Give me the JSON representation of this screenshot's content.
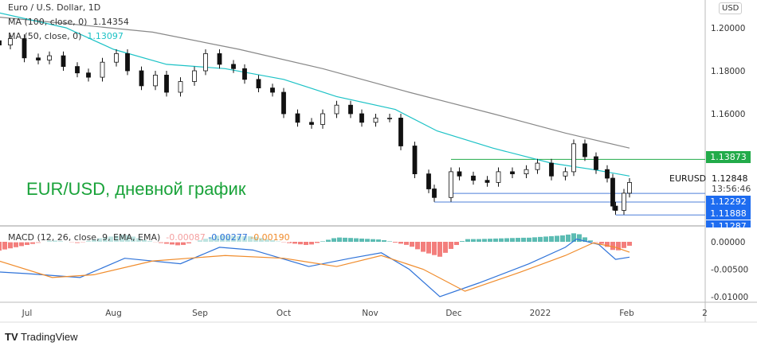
{
  "header": {
    "title": "Euro / U.S. Dollar, 1D",
    "ma100_label": "MA (100, close, 0)",
    "ma100_value": "1.14354",
    "ma50_label": "MA (50, close, 0)",
    "ma50_value": "1.13097",
    "currency": "USD"
  },
  "annotation": "EUR/USD, дневной график",
  "symbol": "EURUSD",
  "last_price": "1.12848",
  "countdown": "13:56:46",
  "price_tags": [
    {
      "value": "1.13873",
      "color": "#22ab4a"
    },
    {
      "value": "1.12292",
      "color": "#1e6cf0"
    },
    {
      "value": "1.11888",
      "color": "#1e6cf0"
    },
    {
      "value": "1.11287",
      "color": "#1e6cf0"
    }
  ],
  "macd": {
    "label": "MACD (12, 26, close, 9, EMA, EMA)",
    "hist_value": "-0.00087",
    "macd_value": "-0.00277",
    "signal_value": "-0.00190"
  },
  "brand": "TradingView",
  "colors": {
    "up": "#555555",
    "down": "#111111",
    "ma50": "#1cc2c6",
    "ma100": "#888888",
    "macd": "#2f73d9",
    "signal": "#f08c2c",
    "hist_pos": "#26a69a",
    "hist_neg": "#ef5350",
    "support": "#4d7fd9",
    "resistance": "#22ab4a"
  },
  "chart_data": {
    "type": "candlestick",
    "title": "Euro / U.S. Dollar, 1D",
    "price_ticks": [
      "1.20000",
      "1.18000",
      "1.16000"
    ],
    "macd_ticks": [
      "0.00000",
      "-0.00500",
      "-0.01000"
    ],
    "x_ticks": [
      "Jul",
      "Aug",
      "Sep",
      "Oct",
      "Nov",
      "Dec",
      "2022",
      "Feb",
      "2"
    ],
    "ylim": [
      1.108,
      1.212
    ],
    "levels": {
      "resistance": 1.13873,
      "support": [
        1.12292,
        1.11888,
        1.11287
      ]
    },
    "closes": [
      [
        "2021-06-21",
        1.192
      ],
      [
        "2021-06-25",
        1.195
      ],
      [
        "2021-06-30",
        1.186
      ],
      [
        "2021-07-05",
        1.185
      ],
      [
        "2021-07-09",
        1.187
      ],
      [
        "2021-07-14",
        1.182
      ],
      [
        "2021-07-19",
        1.179
      ],
      [
        "2021-07-23",
        1.177
      ],
      [
        "2021-07-28",
        1.184
      ],
      [
        "2021-08-02",
        1.188
      ],
      [
        "2021-08-06",
        1.18
      ],
      [
        "2021-08-11",
        1.173
      ],
      [
        "2021-08-16",
        1.178
      ],
      [
        "2021-08-20",
        1.17
      ],
      [
        "2021-08-25",
        1.175
      ],
      [
        "2021-08-30",
        1.18
      ],
      [
        "2021-09-03",
        1.188
      ],
      [
        "2021-09-08",
        1.183
      ],
      [
        "2021-09-13",
        1.181
      ],
      [
        "2021-09-17",
        1.176
      ],
      [
        "2021-09-22",
        1.172
      ],
      [
        "2021-09-27",
        1.17
      ],
      [
        "2021-10-01",
        1.16
      ],
      [
        "2021-10-06",
        1.156
      ],
      [
        "2021-10-11",
        1.155
      ],
      [
        "2021-10-15",
        1.16
      ],
      [
        "2021-10-20",
        1.164
      ],
      [
        "2021-10-25",
        1.16
      ],
      [
        "2021-10-29",
        1.156
      ],
      [
        "2021-11-03",
        1.158
      ],
      [
        "2021-11-08",
        1.158
      ],
      [
        "2021-11-12",
        1.145
      ],
      [
        "2021-11-17",
        1.132
      ],
      [
        "2021-11-22",
        1.125
      ],
      [
        "2021-11-24",
        1.121
      ],
      [
        "2021-11-30",
        1.133
      ],
      [
        "2021-12-03",
        1.131
      ],
      [
        "2021-12-08",
        1.129
      ],
      [
        "2021-12-13",
        1.128
      ],
      [
        "2021-12-17",
        1.133
      ],
      [
        "2021-12-22",
        1.132
      ],
      [
        "2021-12-27",
        1.134
      ],
      [
        "2021-12-31",
        1.137
      ],
      [
        "2022-01-05",
        1.131
      ],
      [
        "2022-01-10",
        1.133
      ],
      [
        "2022-01-13",
        1.146
      ],
      [
        "2022-01-17",
        1.14
      ],
      [
        "2022-01-21",
        1.134
      ],
      [
        "2022-01-25",
        1.13
      ],
      [
        "2022-01-27",
        1.117
      ],
      [
        "2022-01-28",
        1.115
      ],
      [
        "2022-01-31",
        1.123
      ],
      [
        "2022-02-02",
        1.128
      ]
    ],
    "ma50": [
      [
        "2021-06-21",
        1.207
      ],
      [
        "2021-07-15",
        1.2
      ],
      [
        "2021-08-01",
        1.19
      ],
      [
        "2021-08-20",
        1.183
      ],
      [
        "2021-09-10",
        1.181
      ],
      [
        "2021-10-01",
        1.176
      ],
      [
        "2021-10-20",
        1.168
      ],
      [
        "2021-11-10",
        1.162
      ],
      [
        "2021-11-25",
        1.152
      ],
      [
        "2021-12-15",
        1.144
      ],
      [
        "2022-01-05",
        1.137
      ],
      [
        "2022-01-20",
        1.134
      ],
      [
        "2022-02-02",
        1.131
      ]
    ],
    "ma100": [
      [
        "2021-06-21",
        1.205
      ],
      [
        "2021-07-15",
        1.202
      ],
      [
        "2021-08-15",
        1.198
      ],
      [
        "2021-09-15",
        1.19
      ],
      [
        "2021-10-15",
        1.181
      ],
      [
        "2021-11-15",
        1.17
      ],
      [
        "2021-12-15",
        1.16
      ],
      [
        "2022-01-10",
        1.151
      ],
      [
        "2022-02-02",
        1.144
      ]
    ],
    "macd_line": [
      [
        "2021-06-21",
        -0.0055
      ],
      [
        "2021-07-01",
        -0.0058
      ],
      [
        "2021-07-20",
        -0.0065
      ],
      [
        "2021-08-05",
        -0.003
      ],
      [
        "2021-08-25",
        -0.004
      ],
      [
        "2021-09-08",
        -0.001
      ],
      [
        "2021-09-20",
        -0.0015
      ],
      [
        "2021-10-10",
        -0.0045
      ],
      [
        "2021-10-25",
        -0.003
      ],
      [
        "2021-11-05",
        -0.002
      ],
      [
        "2021-11-15",
        -0.005
      ],
      [
        "2021-11-26",
        -0.01
      ],
      [
        "2021-12-10",
        -0.0075
      ],
      [
        "2021-12-28",
        -0.004
      ],
      [
        "2022-01-10",
        -0.001
      ],
      [
        "2022-01-14",
        0.0005
      ],
      [
        "2022-01-22",
        -0.0005
      ],
      [
        "2022-01-28",
        -0.0032
      ],
      [
        "2022-02-02",
        -0.0028
      ]
    ],
    "signal_line": [
      [
        "2021-06-21",
        -0.0035
      ],
      [
        "2021-07-10",
        -0.0065
      ],
      [
        "2021-07-25",
        -0.006
      ],
      [
        "2021-08-15",
        -0.0035
      ],
      [
        "2021-09-10",
        -0.0025
      ],
      [
        "2021-10-01",
        -0.003
      ],
      [
        "2021-10-20",
        -0.0045
      ],
      [
        "2021-11-05",
        -0.0025
      ],
      [
        "2021-11-20",
        -0.005
      ],
      [
        "2021-12-05",
        -0.009
      ],
      [
        "2021-12-25",
        -0.0055
      ],
      [
        "2022-01-10",
        -0.0025
      ],
      [
        "2022-01-20",
        -0.0002
      ],
      [
        "2022-01-28",
        -0.001
      ],
      [
        "2022-02-02",
        -0.0019
      ]
    ]
  }
}
